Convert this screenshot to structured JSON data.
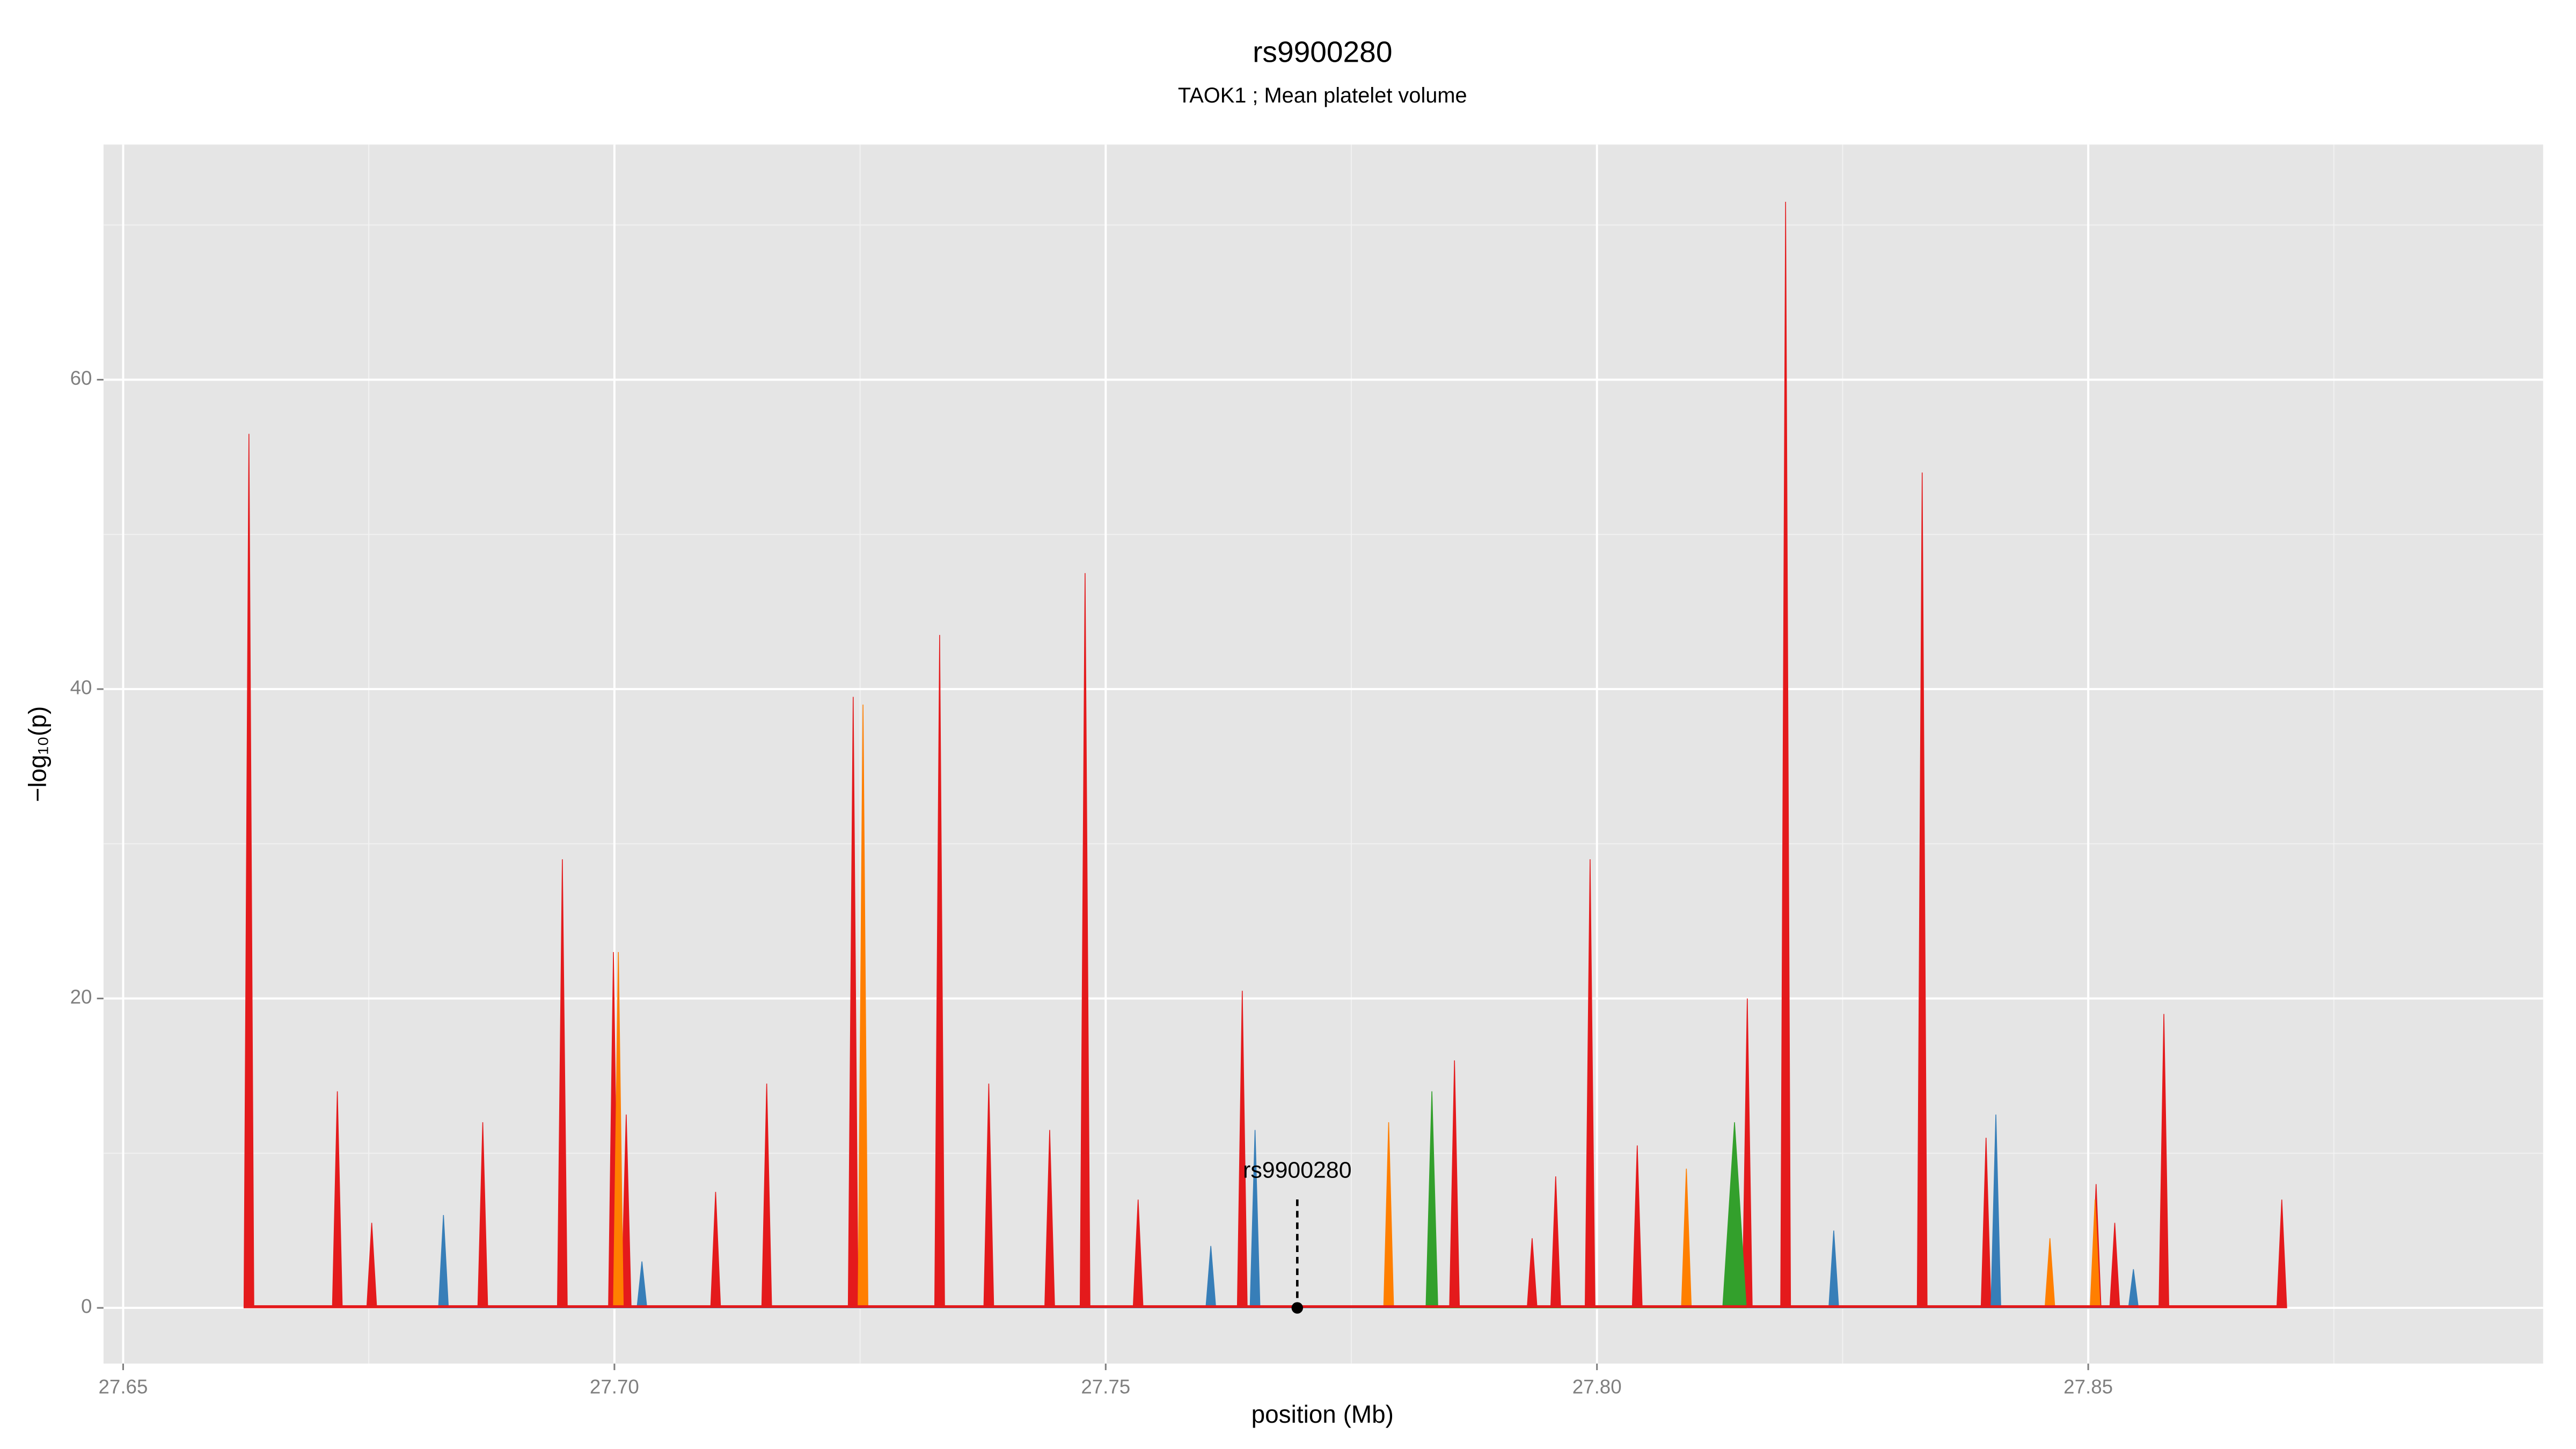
{
  "chart_data": {
    "type": "area",
    "title": "rs9900280",
    "subtitle": "TAOK1 ; Mean platelet volume",
    "x_label": "position (Mb)",
    "y_label": "−log₁₀(p)",
    "xlim": [
      27.648,
      27.8963
    ],
    "ylim": [
      -3.6,
      75.2
    ],
    "xticks": [
      27.65,
      {
        "value": 27.7,
        "label": "27.70"
      },
      27.75,
      {
        "value": 27.8,
        "label": "27.80"
      },
      27.85
    ],
    "yticks": [
      0,
      20,
      40,
      60
    ],
    "xminor": [
      27.675,
      27.725,
      27.775,
      27.825,
      27.875
    ],
    "yminor": [
      10,
      30,
      50,
      70
    ],
    "grid": true,
    "series": [
      {
        "name": "red",
        "color": "#e41a1c",
        "x": [
          27.6623,
          27.6628,
          27.6633,
          27.6713,
          27.6718,
          27.6723,
          27.6748,
          27.6753,
          27.6758,
          27.6861,
          27.6866,
          27.6871,
          27.6942,
          27.6947,
          27.6952,
          27.6994,
          27.6999,
          27.7004,
          27.7007,
          27.7012,
          27.7017,
          27.7098,
          27.7103,
          27.7108,
          27.715,
          27.7155,
          27.716,
          27.7238,
          27.7243,
          27.7248,
          27.7326,
          27.7331,
          27.7336,
          27.7376,
          27.7381,
          27.7386,
          27.7438,
          27.7443,
          27.7448,
          27.7474,
          27.7479,
          27.7484,
          27.7528,
          27.7533,
          27.7538,
          27.7634,
          27.7639,
          27.7644,
          27.785,
          27.7855,
          27.786,
          27.7929,
          27.7934,
          27.7939,
          27.7953,
          27.7958,
          27.7963,
          27.7988,
          27.7993,
          27.7998,
          27.8036,
          27.8041,
          27.8046,
          27.8148,
          27.8153,
          27.8158,
          27.8187,
          27.8192,
          27.8197,
          27.8326,
          27.8331,
          27.8336,
          27.8391,
          27.8396,
          27.8401,
          27.8503,
          27.8508,
          27.8513,
          27.8522,
          27.8527,
          27.8532,
          27.8572,
          27.8577,
          27.8582,
          27.8692,
          27.8697,
          27.8702
        ],
        "values": [
          0,
          56.5,
          0,
          0,
          14,
          0,
          0,
          5.5,
          0,
          0,
          12,
          0,
          0,
          29,
          0,
          0,
          23,
          0,
          0,
          12.5,
          0,
          0,
          7.5,
          0,
          0,
          14.5,
          0,
          0,
          39.5,
          0,
          0,
          43.5,
          0,
          0,
          14.5,
          0,
          0,
          11.5,
          0,
          0,
          47.5,
          0,
          0,
          7,
          0,
          0,
          20.5,
          0,
          0,
          16,
          0,
          0,
          4.5,
          0,
          0,
          8.5,
          0,
          0,
          29,
          0,
          0,
          10.5,
          0,
          0,
          20,
          0,
          0,
          71.5,
          0,
          0,
          54,
          0,
          0,
          11,
          0,
          0,
          8,
          0,
          0,
          5.5,
          0,
          0,
          19,
          0,
          0,
          7,
          0
        ]
      },
      {
        "name": "orange",
        "color": "#ff7f00",
        "x": [
          27.6999,
          27.7004,
          27.7009,
          27.7248,
          27.7253,
          27.7258,
          27.7783,
          27.7788,
          27.7793,
          27.8086,
          27.8091,
          27.8096,
          27.8456,
          27.8461,
          27.8466,
          27.8502,
          27.8507,
          27.8512
        ],
        "values": [
          0,
          23,
          0,
          0,
          39,
          0,
          0,
          12,
          0,
          0,
          9,
          0,
          0,
          4.5,
          0,
          0,
          7,
          0
        ]
      },
      {
        "name": "blue",
        "color": "#377eb8",
        "x": [
          27.6821,
          27.6826,
          27.6831,
          27.7023,
          27.7028,
          27.7033,
          27.7602,
          27.7607,
          27.7612,
          27.7647,
          27.7652,
          27.7657,
          27.8236,
          27.8241,
          27.8246,
          27.8401,
          27.8406,
          27.8411,
          27.8541,
          27.8546,
          27.8551
        ],
        "values": [
          0,
          6,
          0,
          0,
          3,
          0,
          0,
          4,
          0,
          0,
          11.5,
          0,
          0,
          5,
          0,
          0,
          12.5,
          0,
          0,
          2.5,
          0
        ]
      },
      {
        "name": "green",
        "color": "#33a02c",
        "x": [
          27.7826,
          27.7832,
          27.7838,
          27.8128,
          27.814,
          27.8152
        ],
        "values": [
          0,
          14,
          0,
          0,
          12,
          0
        ]
      }
    ],
    "annotation": {
      "label": "rs9900280",
      "x": 27.7695,
      "y": 0
    }
  }
}
